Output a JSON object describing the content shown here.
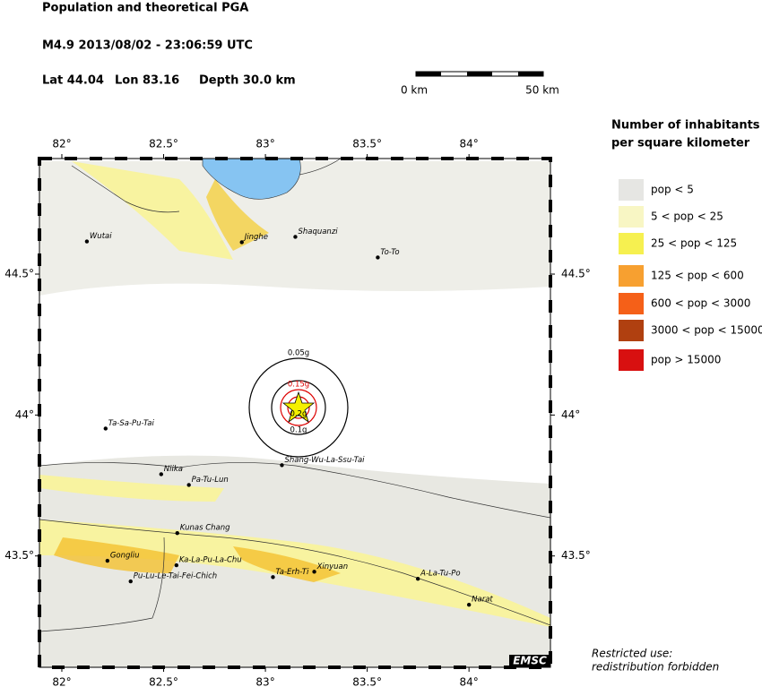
{
  "header": {
    "title": "Population and theoretical PGA",
    "event": "M4.9  2013/08/02 - 23:06:59 UTC",
    "lat": "Lat 44.04",
    "lon": "Lon  83.16",
    "depth": "Depth  30.0 km"
  },
  "scale": {
    "start": "0 km",
    "end": "50 km"
  },
  "map": {
    "xlim": [
      81.89,
      84.4
    ],
    "ylim": [
      43.105,
      44.91
    ],
    "xticks": [
      {
        "value": 82,
        "label": "82°"
      },
      {
        "value": 82.5,
        "label": "82.5°"
      },
      {
        "value": 83,
        "label": "83°"
      },
      {
        "value": 83.5,
        "label": "83.5°"
      },
      {
        "value": 84,
        "label": "84°"
      }
    ],
    "yticks": [
      {
        "value": 43.5,
        "label": "43.5°"
      },
      {
        "value": 44,
        "label": "44°"
      },
      {
        "value": 44.5,
        "label": "44.5°"
      }
    ]
  },
  "places": [
    {
      "name": "Wutai",
      "lon": 82.123,
      "lat": 44.616
    },
    {
      "name": "Jinghe",
      "lon": 82.884,
      "lat": 44.613
    },
    {
      "name": "Shaquanzi",
      "lon": 83.147,
      "lat": 44.632
    },
    {
      "name": "To-To",
      "lon": 83.552,
      "lat": 44.559
    },
    {
      "name": "Ta-Sa-Pu-Tai",
      "lon": 82.215,
      "lat": 43.952
    },
    {
      "name": "Niika",
      "lon": 82.488,
      "lat": 43.79
    },
    {
      "name": "Pa-Tu-Lun",
      "lon": 82.624,
      "lat": 43.752
    },
    {
      "name": "Shang-Wu-La-Ssu-Tai",
      "lon": 83.081,
      "lat": 43.822
    },
    {
      "name": "Kunas Chang",
      "lon": 82.567,
      "lat": 43.581
    },
    {
      "name": "Gongliu",
      "lon": 82.224,
      "lat": 43.483
    },
    {
      "name": "Ka-La-Pu-La-Chu",
      "lon": 82.563,
      "lat": 43.467
    },
    {
      "name": "Pu-Lu-Le-Tai-Fei-Chich",
      "lon": 82.338,
      "lat": 43.41
    },
    {
      "name": "Ta-Erh-Ti",
      "lon": 83.037,
      "lat": 43.425
    },
    {
      "name": "Xinyuan",
      "lon": 83.24,
      "lat": 43.444
    },
    {
      "name": "A-La-Tu-Po",
      "lon": 83.749,
      "lat": 43.419
    },
    {
      "name": "Narat",
      "lon": 84.0,
      "lat": 43.327
    }
  ],
  "pga_labels": [
    "0.05g",
    "0.1g",
    "0.15g",
    "0.2g"
  ],
  "legend": {
    "title": [
      "Number of inhabitants",
      "per square kilometer"
    ],
    "entries": [
      {
        "name": "pop < 5",
        "color": "#e6e6e3"
      },
      {
        "name": "5 < pop < 25",
        "color": "#f8f6c4"
      },
      {
        "name": "25 < pop < 125",
        "color": "#f6f050"
      },
      {
        "name": "125 < pop < 600",
        "color": "#f7a030"
      },
      {
        "name": "600 < pop < 3000",
        "color": "#f56018"
      },
      {
        "name": "3000 < pop < 15000",
        "color": "#b04010"
      },
      {
        "name": "pop > 15000",
        "color": "#d81010"
      }
    ]
  },
  "footer": {
    "logo": "EMSC",
    "note": [
      "Restricted use:",
      "redistribution forbidden"
    ]
  }
}
